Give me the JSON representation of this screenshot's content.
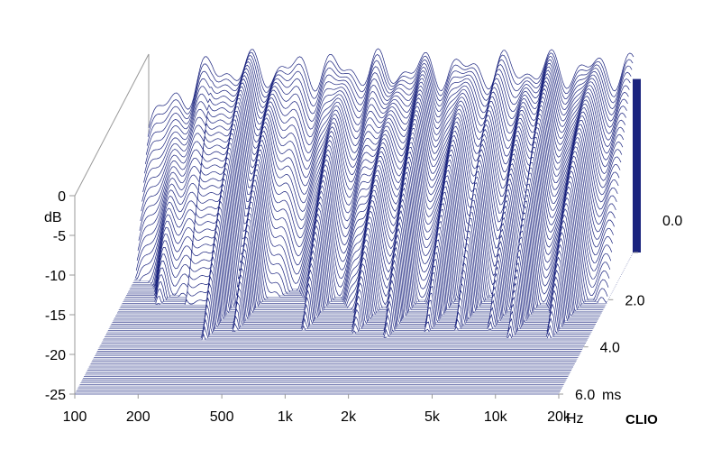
{
  "chart_data": {
    "type": "waterfall",
    "y_axis": {
      "unit": "dB",
      "ticks": [
        "0",
        "-5",
        "-10",
        "-15",
        "-20",
        "-25"
      ],
      "values": [
        0,
        -5,
        -10,
        -15,
        -20,
        -25
      ],
      "range": [
        -25,
        0
      ]
    },
    "x_axis": {
      "unit": "Hz",
      "scale": "log",
      "range": [
        100,
        20000
      ],
      "ticks": [
        {
          "value": 100,
          "label": "100"
        },
        {
          "value": 200,
          "label": "200"
        },
        {
          "value": 500,
          "label": "500"
        },
        {
          "value": 1000,
          "label": "1k"
        },
        {
          "value": 2000,
          "label": "2k"
        },
        {
          "value": 5000,
          "label": "5k"
        },
        {
          "value": 10000,
          "label": "10k"
        },
        {
          "value": 20000,
          "label": "20k"
        }
      ]
    },
    "z_axis": {
      "unit": "ms",
      "range": [
        0,
        6
      ],
      "ticks": [
        {
          "value": 0,
          "label": "0.0"
        },
        {
          "value": 2,
          "label": "2.0"
        },
        {
          "value": 4,
          "label": "4.0"
        },
        {
          "value": 6,
          "label": "6.0"
        }
      ]
    },
    "brand": "CLIO",
    "colors": {
      "trace": "#1a237e",
      "floor": "#8088b8",
      "frame": "#999999"
    },
    "decay_model": {
      "initial_level_db": -2,
      "low_cutoff_hz": 200,
      "resonances_hz": [
        150,
        300,
        400,
        850,
        1500,
        2200,
        3300,
        4500,
        6500,
        8500,
        13000
      ],
      "slice_count": 90
    }
  },
  "labels": {
    "db_unit": "dB",
    "hz_unit": "Hz",
    "ms_unit": "ms",
    "brand": "CLIO"
  }
}
